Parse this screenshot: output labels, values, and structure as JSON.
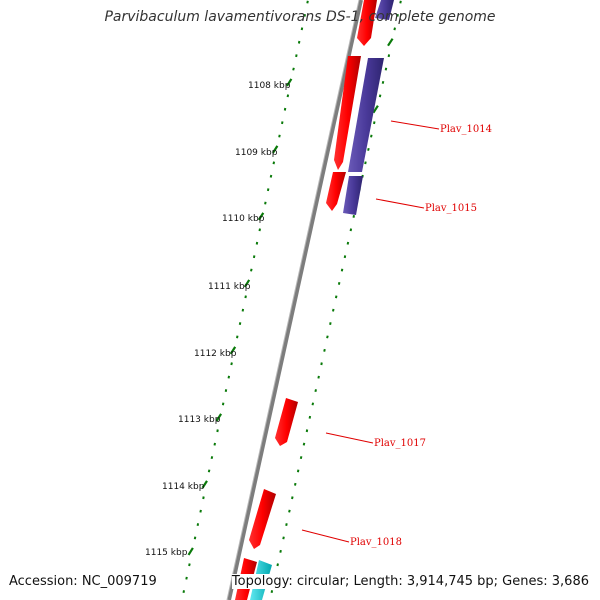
{
  "title": "Parvibaculum lavamentivorans DS-1, complete genome",
  "accession_text": "Accession: NC_009719",
  "topology_text": "Topology: circular; Length: 3,914,745 bp; Genes: 3,686",
  "colors": {
    "forward_gene": "#ff0000",
    "reverse_gene": "#4a3a9a",
    "other_gene": "#00c8d0",
    "backbone": "#808080",
    "ticks": "#0a7a0a",
    "label": "#e00000"
  },
  "kbp_ticks": [
    {
      "label": "1108 kbp"
    },
    {
      "label": "1109 kbp"
    },
    {
      "label": "1110 kbp"
    },
    {
      "label": "1111 kbp"
    },
    {
      "label": "1112 kbp"
    },
    {
      "label": "1113 kbp"
    },
    {
      "label": "1114 kbp"
    },
    {
      "label": "1115 kbp"
    }
  ],
  "gene_labels": [
    {
      "label": "Plav_1014"
    },
    {
      "label": "Plav_1015"
    },
    {
      "label": "Plav_1017"
    },
    {
      "label": "Plav_1018"
    }
  ]
}
